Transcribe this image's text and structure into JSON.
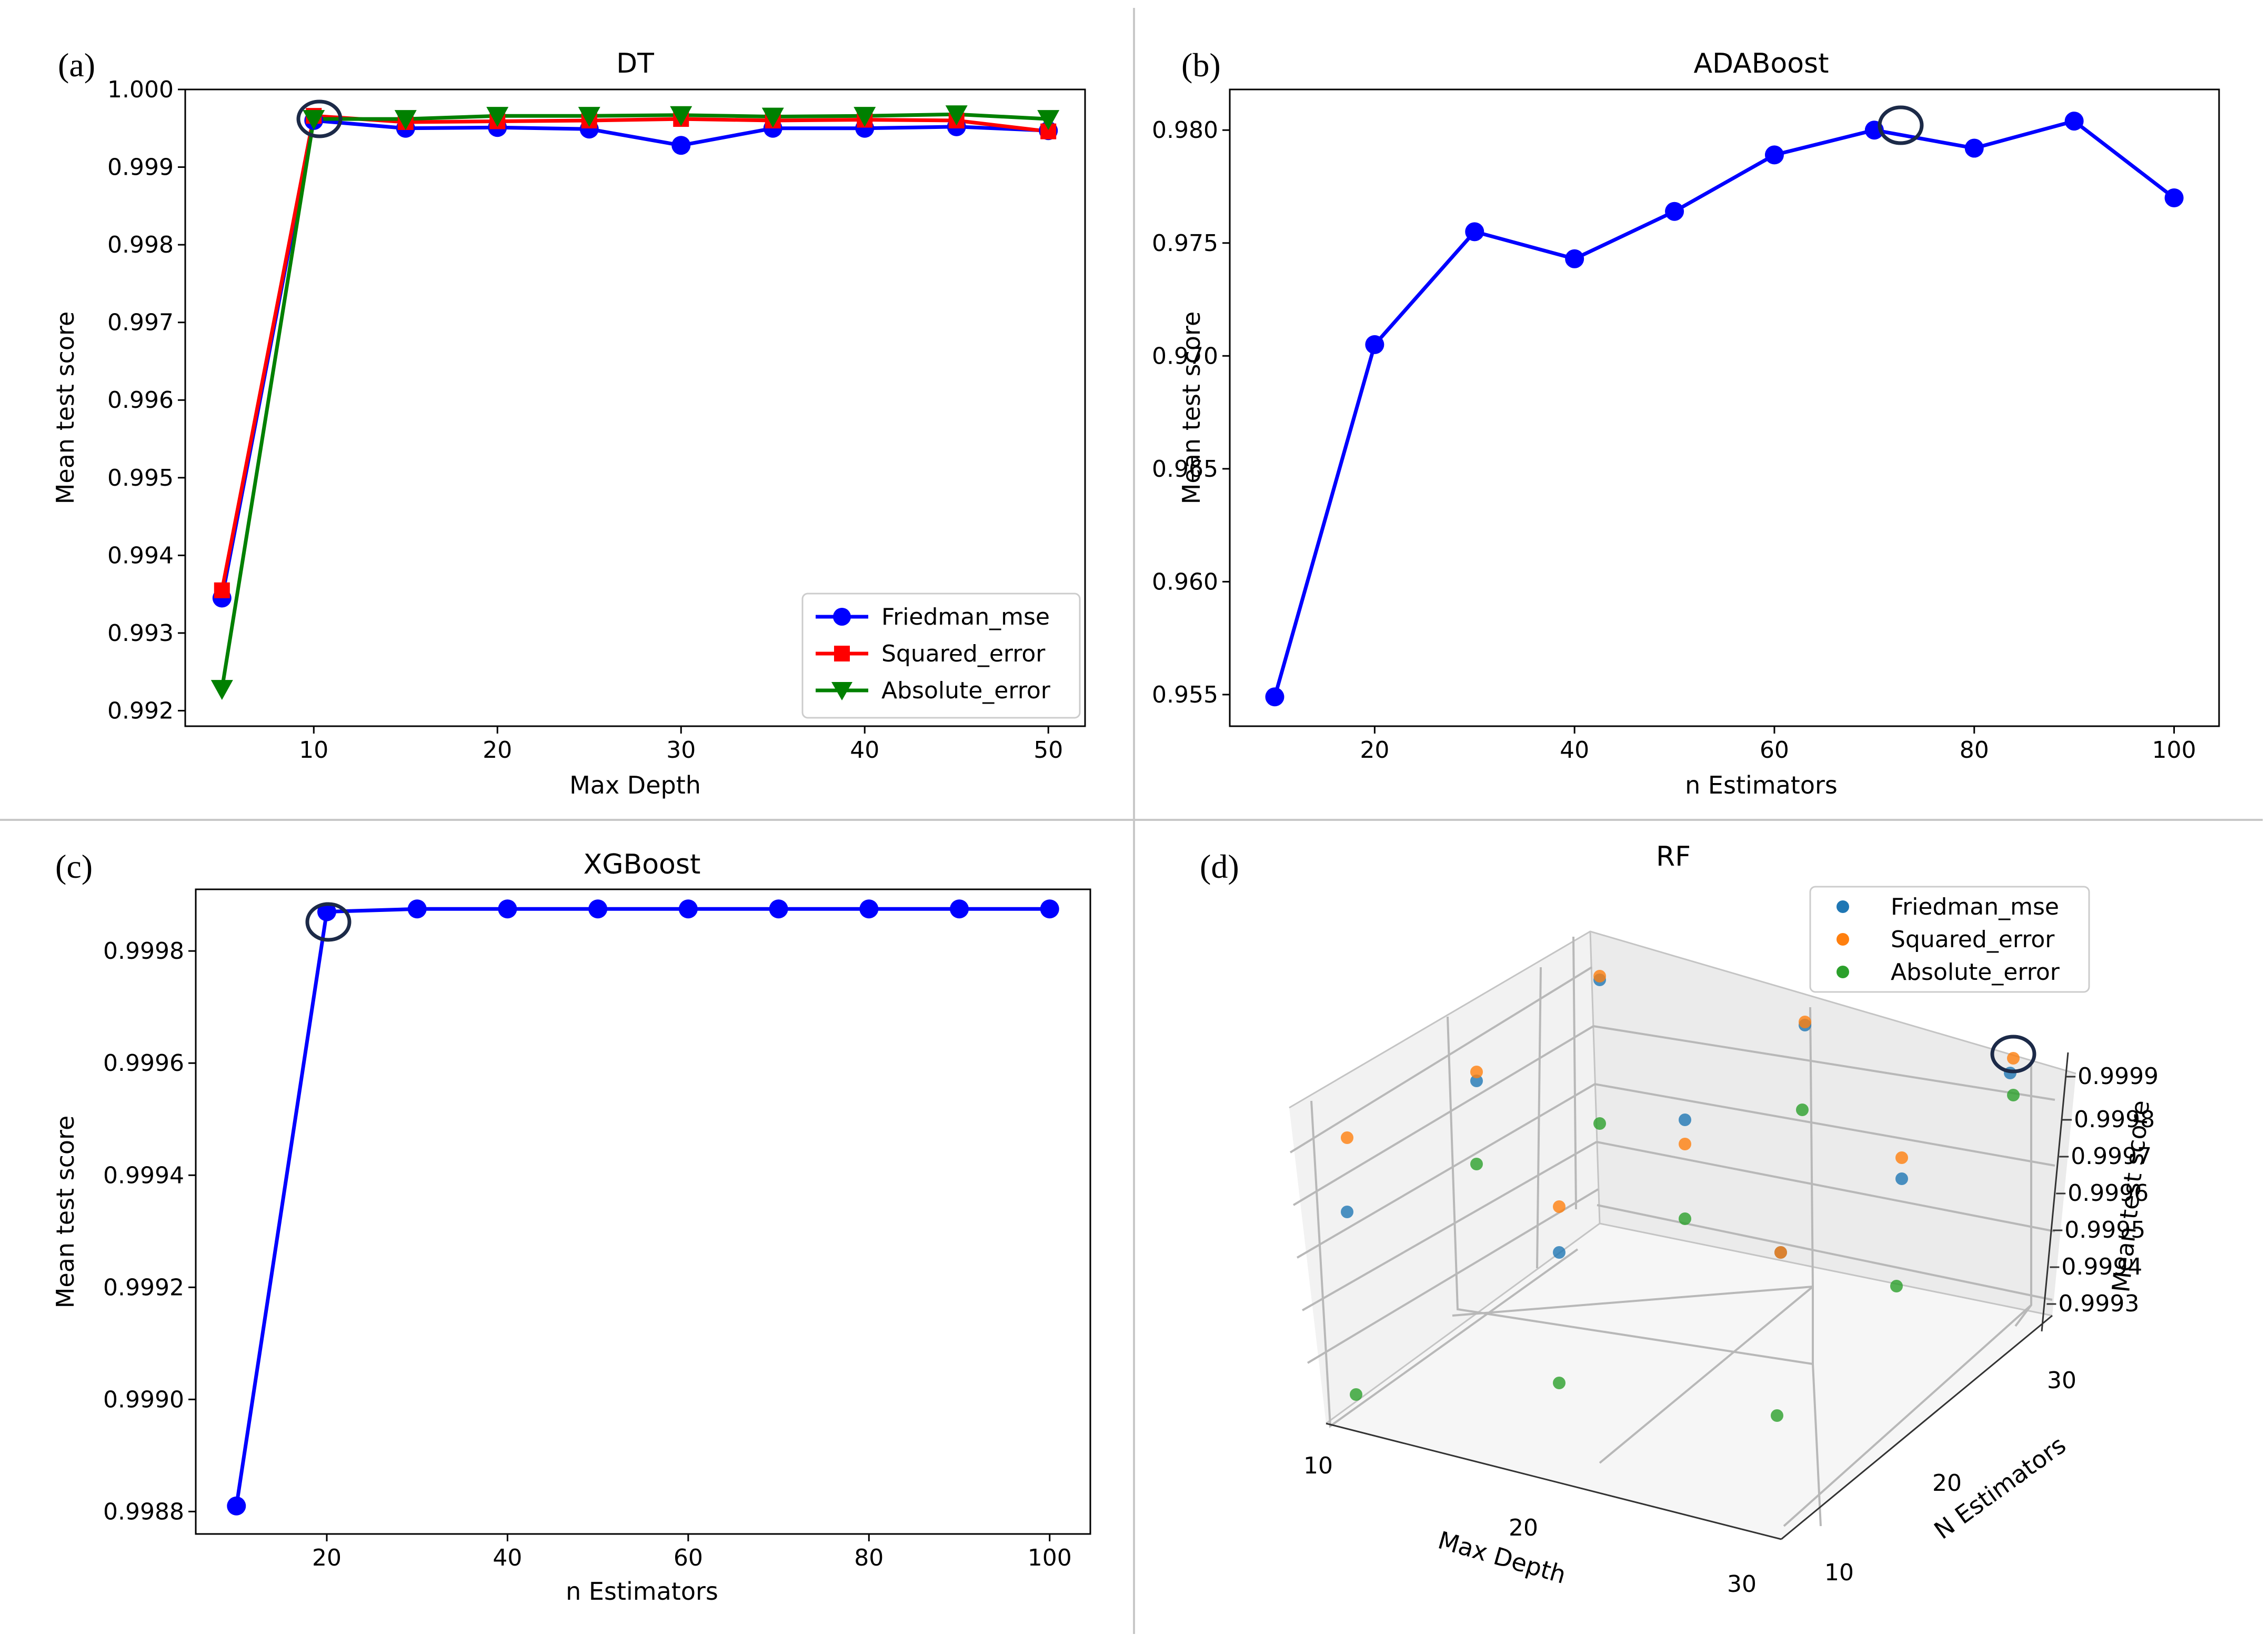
{
  "chart_data": [
    {
      "id": "a",
      "panel_label": "(a)",
      "type": "line",
      "title": "DT",
      "xlabel": "Max Depth",
      "ylabel": "Mean test score",
      "xlim": [
        3,
        52
      ],
      "ylim": [
        0.9918,
        1.0
      ],
      "xticks": [
        10,
        20,
        30,
        40,
        50
      ],
      "xtick_labels": [
        "10",
        "20",
        "30",
        "40",
        "50"
      ],
      "yticks": [
        0.992,
        0.993,
        0.994,
        0.995,
        0.996,
        0.997,
        0.998,
        0.999,
        1.0
      ],
      "ytick_labels": [
        "0.992",
        "0.993",
        "0.994",
        "0.995",
        "0.996",
        "0.997",
        "0.998",
        "0.999",
        "1.000"
      ],
      "x": [
        5,
        10,
        15,
        20,
        25,
        30,
        35,
        40,
        45,
        50
      ],
      "series": [
        {
          "name": "Friedman_mse",
          "color": "#0000ff",
          "marker": "circle",
          "values": [
            0.99345,
            0.9996,
            0.9995,
            0.99951,
            0.99949,
            0.99928,
            0.9995,
            0.9995,
            0.99952,
            0.99947
          ]
        },
        {
          "name": "Squared_error",
          "color": "#ff0000",
          "marker": "square",
          "values": [
            0.99355,
            0.99966,
            0.99958,
            0.99959,
            0.9996,
            0.99962,
            0.9996,
            0.99961,
            0.9996,
            0.99946
          ]
        },
        {
          "name": "Absolute_error",
          "color": "#008000",
          "marker": "triangle-down",
          "values": [
            0.99228,
            0.99962,
            0.99962,
            0.99966,
            0.99966,
            0.99967,
            0.99965,
            0.99966,
            0.99968,
            0.99962
          ]
        }
      ],
      "legend": {
        "position": "lower-right",
        "entries": [
          "Friedman_mse",
          "Squared_error",
          "Absolute_error"
        ]
      },
      "highlight": {
        "x": 10,
        "y": 0.99963
      }
    },
    {
      "id": "b",
      "panel_label": "(b)",
      "type": "line",
      "title": "ADABoost",
      "xlabel": "n Estimators",
      "ylabel": "Mean test score",
      "xlim": [
        5.5,
        104.5
      ],
      "ylim": [
        0.9536,
        0.9818
      ],
      "xticks": [
        20,
        40,
        60,
        80,
        100
      ],
      "xtick_labels": [
        "20",
        "40",
        "60",
        "80",
        "100"
      ],
      "yticks": [
        0.955,
        0.96,
        0.965,
        0.97,
        0.975,
        0.98
      ],
      "ytick_labels": [
        "0.955",
        "0.960",
        "0.965",
        "0.970",
        "0.975",
        "0.980"
      ],
      "x": [
        10,
        20,
        30,
        40,
        50,
        60,
        70,
        80,
        90,
        100
      ],
      "series": [
        {
          "name": "ADABoost",
          "color": "#0000ff",
          "marker": "circle",
          "values": [
            0.9549,
            0.9705,
            0.9755,
            0.9743,
            0.9764,
            0.9789,
            0.98,
            0.9792,
            0.9804,
            0.977
          ]
        }
      ],
      "highlight": {
        "x": 70,
        "y": 0.98
      }
    },
    {
      "id": "c",
      "panel_label": "(c)",
      "type": "line",
      "title": "XGBoost",
      "xlabel": "n Estimators",
      "ylabel": "Mean test score",
      "xlim": [
        5.5,
        104.5
      ],
      "ylim": [
        0.99876,
        0.99991
      ],
      "xticks": [
        20,
        40,
        60,
        80,
        100
      ],
      "xtick_labels": [
        "20",
        "40",
        "60",
        "80",
        "100"
      ],
      "yticks": [
        0.9988,
        0.999,
        0.9992,
        0.9994,
        0.9996,
        0.9998
      ],
      "ytick_labels": [
        "0.9988",
        "0.9990",
        "0.9992",
        "0.9994",
        "0.9996",
        "0.9998"
      ],
      "x": [
        10,
        20,
        30,
        40,
        50,
        60,
        70,
        80,
        90,
        100
      ],
      "series": [
        {
          "name": "XGBoost",
          "color": "#0000ff",
          "marker": "circle",
          "values": [
            0.99881,
            0.99987,
            0.999875,
            0.999875,
            0.999875,
            0.999875,
            0.999875,
            0.999875,
            0.999875,
            0.999875
          ]
        }
      ],
      "highlight": {
        "x": 20,
        "y": 0.99987
      }
    },
    {
      "id": "d",
      "panel_label": "(d)",
      "type": "scatter",
      "title": "RF",
      "xlabel": "Max Depth",
      "ylabel": "N Estimators",
      "zlabel": "Mean test score",
      "x_ticks": [
        "10",
        "20",
        "30"
      ],
      "y_ticks": [
        "10",
        "20",
        "30"
      ],
      "z_ticks": [
        "0.9993",
        "0.9994",
        "0.9995",
        "0.9996",
        "0.9997",
        "0.9998",
        "0.9999"
      ],
      "series": [
        {
          "name": "Friedman_mse",
          "color": "#1f77b4"
        },
        {
          "name": "Squared_error",
          "color": "#ff7f0e"
        },
        {
          "name": "Absolute_error",
          "color": "#2ca02c"
        }
      ],
      "legend": {
        "position": "top-right",
        "entries": [
          "Friedman_mse",
          "Squared_error",
          "Absolute_error"
        ]
      },
      "highlight": {
        "max_depth": 30,
        "n_estimators": 30,
        "series": "Squared_error"
      }
    }
  ]
}
